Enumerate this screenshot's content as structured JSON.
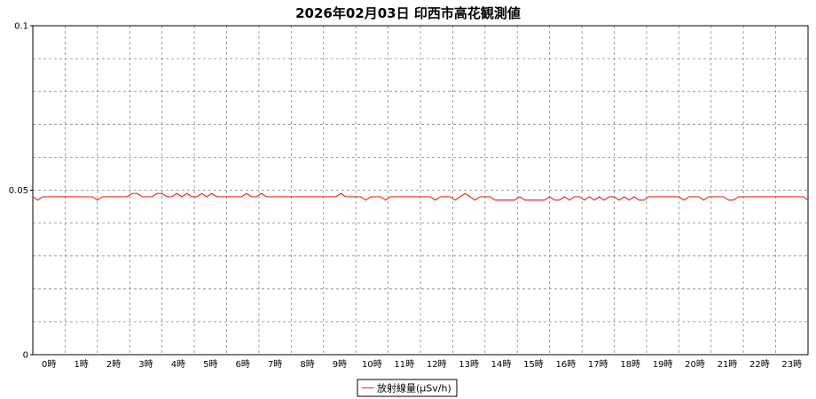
{
  "chart_data": {
    "type": "line",
    "title": "2026年02月03日 印西市高花観測値",
    "xlabel": "",
    "ylabel": "",
    "ylim": [
      0,
      0.1
    ],
    "y_ticks": [
      "0",
      "0.05",
      "0.1"
    ],
    "x_tick_labels": [
      "0時",
      "1時",
      "2時",
      "3時",
      "4時",
      "5時",
      "6時",
      "7時",
      "8時",
      "9時",
      "10時",
      "11時",
      "12時",
      "13時",
      "14時",
      "15時",
      "16時",
      "17時",
      "18時",
      "19時",
      "20時",
      "21時",
      "22時",
      "23時"
    ],
    "grid": true,
    "legend_position": "bottom-center",
    "series": [
      {
        "name": "放射線量(μSv/h)",
        "color": "#e8321e",
        "values": [
          0.048,
          0.047,
          0.048,
          0.048,
          0.048,
          0.048,
          0.048,
          0.048,
          0.048,
          0.048,
          0.048,
          0.048,
          0.048,
          0.047,
          0.048,
          0.048,
          0.048,
          0.048,
          0.048,
          0.048,
          0.049,
          0.049,
          0.048,
          0.048,
          0.048,
          0.049,
          0.049,
          0.048,
          0.048,
          0.049,
          0.048,
          0.049,
          0.048,
          0.048,
          0.049,
          0.048,
          0.049,
          0.048,
          0.048,
          0.048,
          0.048,
          0.048,
          0.048,
          0.049,
          0.048,
          0.048,
          0.049,
          0.048,
          0.048,
          0.048,
          0.048,
          0.048,
          0.048,
          0.048,
          0.048,
          0.048,
          0.048,
          0.048,
          0.048,
          0.048,
          0.048,
          0.048,
          0.049,
          0.048,
          0.048,
          0.048,
          0.048,
          0.047,
          0.048,
          0.048,
          0.048,
          0.047,
          0.048,
          0.048,
          0.048,
          0.048,
          0.048,
          0.048,
          0.048,
          0.048,
          0.048,
          0.047,
          0.048,
          0.048,
          0.048,
          0.047,
          0.048,
          0.049,
          0.048,
          0.047,
          0.048,
          0.048,
          0.048,
          0.047,
          0.047,
          0.047,
          0.047,
          0.047,
          0.048,
          0.047,
          0.047,
          0.047,
          0.047,
          0.047,
          0.048,
          0.047,
          0.047,
          0.048,
          0.047,
          0.048,
          0.048,
          0.047,
          0.048,
          0.047,
          0.048,
          0.047,
          0.048,
          0.048,
          0.047,
          0.048,
          0.047,
          0.048,
          0.047,
          0.047,
          0.048,
          0.048,
          0.048,
          0.048,
          0.048,
          0.048,
          0.048,
          0.047,
          0.048,
          0.048,
          0.048,
          0.047,
          0.048,
          0.048,
          0.048,
          0.048,
          0.047,
          0.047,
          0.048,
          0.048,
          0.048,
          0.048,
          0.048,
          0.048,
          0.048,
          0.048,
          0.048,
          0.048,
          0.048,
          0.048,
          0.048,
          0.048,
          0.047
        ]
      }
    ]
  }
}
